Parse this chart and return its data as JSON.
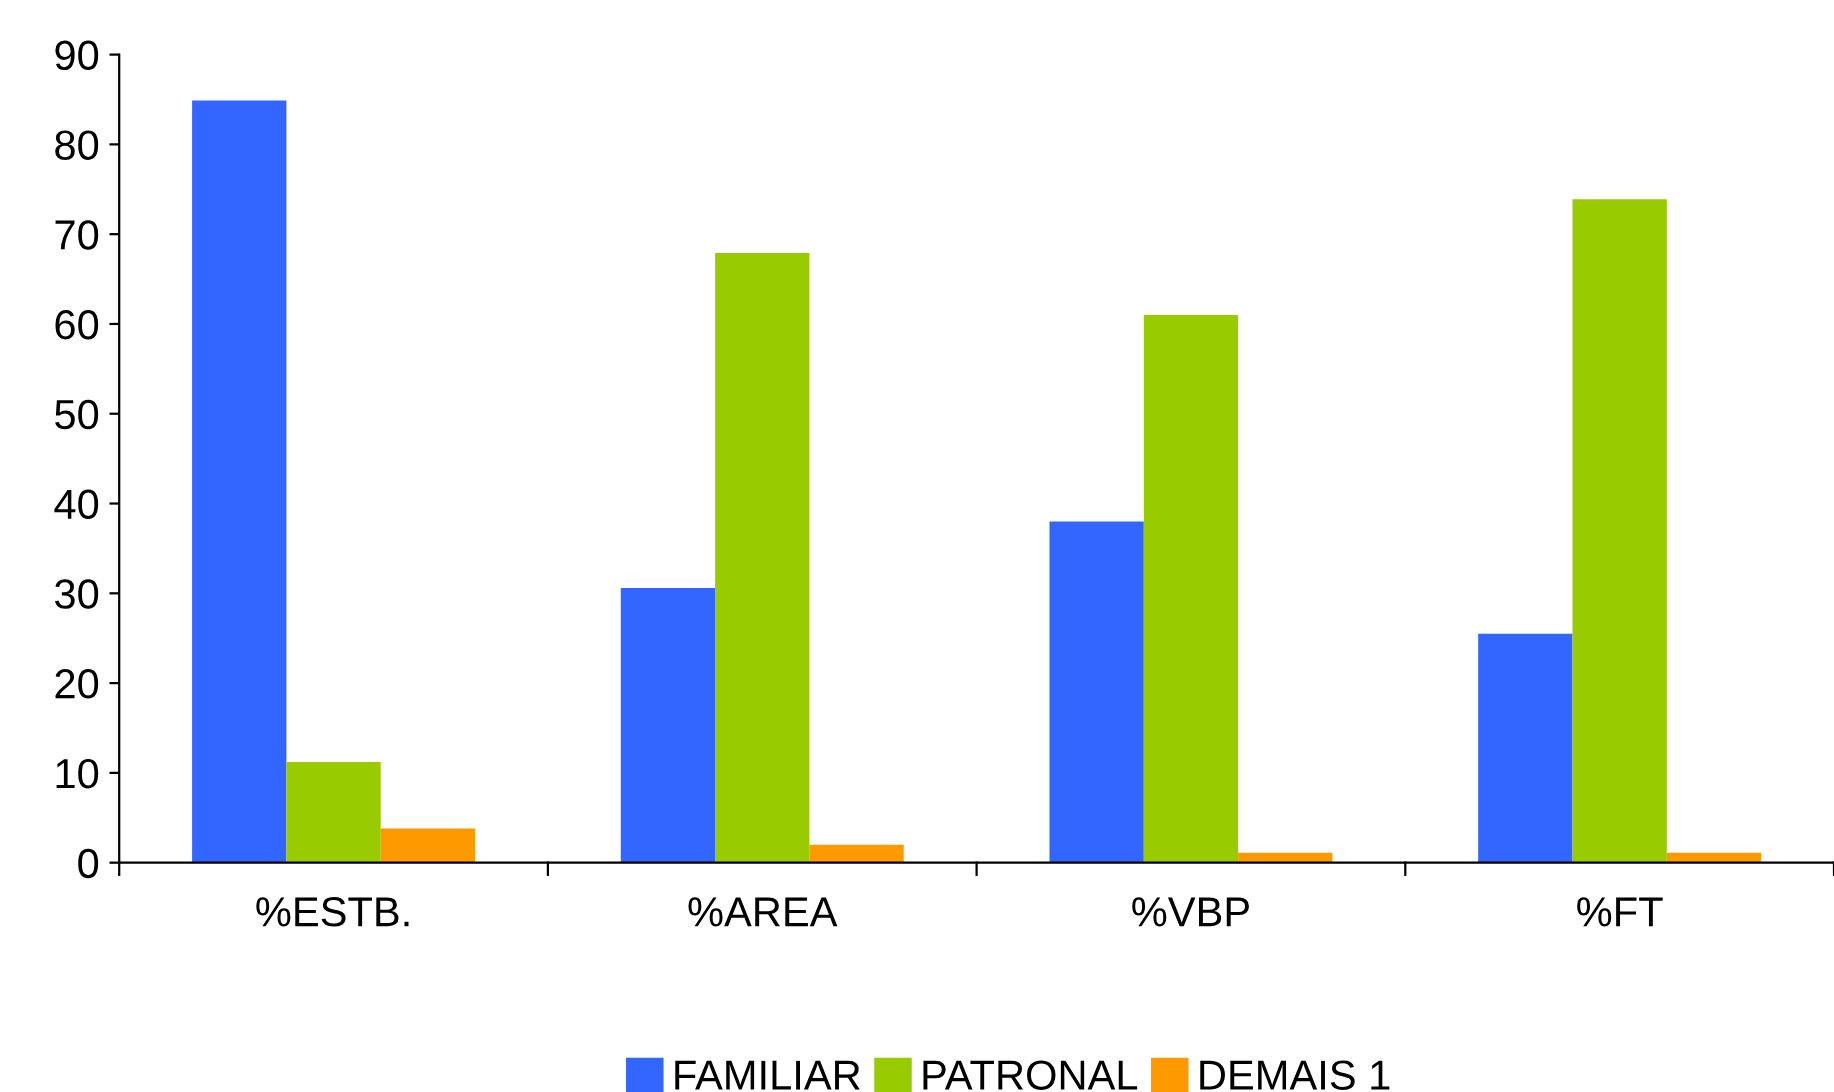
{
  "chart_data": {
    "type": "bar",
    "categories": [
      "%ESTB.",
      "%AREA",
      "%VBP",
      "%FT"
    ],
    "series": [
      {
        "name": "FAMILIAR",
        "color": "#3366ff",
        "values": [
          84.9,
          30.6,
          38.0,
          25.5
        ]
      },
      {
        "name": "PATRONAL",
        "color": "#99cc00",
        "values": [
          11.2,
          67.9,
          61.0,
          73.9
        ]
      },
      {
        "name": "DEMAIS 1",
        "color": "#ff9900",
        "values": [
          3.8,
          2.0,
          1.1,
          1.1
        ]
      }
    ],
    "ylim": [
      0,
      90
    ],
    "yticks": [
      0,
      10,
      20,
      30,
      40,
      50,
      60,
      70,
      80,
      90
    ],
    "grid": false,
    "legend": "bottom"
  }
}
